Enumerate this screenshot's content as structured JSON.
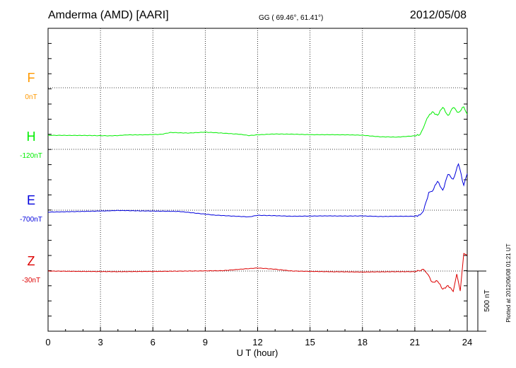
{
  "header": {
    "station": "Amderma (AMD)  [AARI]",
    "coords": "GG ( 69.46°,  61.41°)",
    "date": "2012/05/08"
  },
  "footer": {
    "plotted": "Plotted at 2012/06/08 01:21  UT"
  },
  "chart_data": {
    "type": "line",
    "xlabel": "U T (hour)",
    "xlim": [
      0,
      24
    ],
    "xticks": [
      0,
      3,
      6,
      9,
      12,
      15,
      18,
      21,
      24
    ],
    "xtick_labels": [
      "0",
      "3",
      "6",
      "9",
      "12",
      "15",
      "18",
      "21",
      "24"
    ],
    "scale_bar": {
      "label": "500 nT",
      "value_nT": 500
    },
    "series": [
      {
        "name": "F",
        "baseline_label": "0nT",
        "color": "#ff9900",
        "values": []
      },
      {
        "name": "H",
        "baseline_label": "-120nT",
        "color": "#00ee00",
        "values": [
          [
            0,
            92
          ],
          [
            2,
            91
          ],
          [
            3.5,
            88
          ],
          [
            4,
            90
          ],
          [
            4.5,
            95
          ],
          [
            5.5,
            96
          ],
          [
            6.5,
            100
          ],
          [
            7,
            115
          ],
          [
            8,
            110
          ],
          [
            9,
            118
          ],
          [
            10,
            110
          ],
          [
            11,
            100
          ],
          [
            11.5,
            90
          ],
          [
            12,
            96
          ],
          [
            13,
            103
          ],
          [
            14,
            101
          ],
          [
            15,
            97
          ],
          [
            16,
            97
          ],
          [
            17,
            96
          ],
          [
            18,
            93
          ],
          [
            18.5,
            86
          ],
          [
            19,
            80
          ],
          [
            20,
            77
          ],
          [
            21,
            88
          ],
          [
            21.3,
            98
          ],
          [
            21.5,
            150
          ],
          [
            21.7,
            235
          ],
          [
            22,
            285
          ],
          [
            22.3,
            255
          ],
          [
            22.6,
            325
          ],
          [
            22.9,
            250
          ],
          [
            23.2,
            325
          ],
          [
            23.5,
            275
          ],
          [
            23.8,
            330
          ],
          [
            24,
            265
          ]
        ]
      },
      {
        "name": "E",
        "baseline_label": "-700nT",
        "color": "#0000dd",
        "values": [
          [
            0,
            -16
          ],
          [
            2,
            -10
          ],
          [
            3.5,
            -5
          ],
          [
            4,
            -2
          ],
          [
            5,
            -5
          ],
          [
            6.5,
            -8
          ],
          [
            7.5,
            -10
          ],
          [
            8.5,
            -25
          ],
          [
            9.5,
            -40
          ],
          [
            10.5,
            -48
          ],
          [
            11.5,
            -55
          ],
          [
            12,
            -42
          ],
          [
            13,
            -45
          ],
          [
            14,
            -50
          ],
          [
            15,
            -48
          ],
          [
            16,
            -47
          ],
          [
            17,
            -48
          ],
          [
            18,
            -47
          ],
          [
            19,
            -52
          ],
          [
            20,
            -50
          ],
          [
            21,
            -50
          ],
          [
            21.3,
            -40
          ],
          [
            21.5,
            0
          ],
          [
            21.8,
            140
          ],
          [
            22,
            155
          ],
          [
            22.3,
            240
          ],
          [
            22.6,
            160
          ],
          [
            22.9,
            300
          ],
          [
            23.2,
            250
          ],
          [
            23.5,
            385
          ],
          [
            23.8,
            200
          ],
          [
            24,
            300
          ]
        ]
      },
      {
        "name": "Z",
        "baseline_label": "-30nT",
        "color": "#dd0000",
        "values": [
          [
            0,
            0
          ],
          [
            2,
            -3
          ],
          [
            4,
            -5
          ],
          [
            6,
            -3
          ],
          [
            8,
            0
          ],
          [
            10,
            3
          ],
          [
            11,
            15
          ],
          [
            12,
            25
          ],
          [
            13,
            15
          ],
          [
            14,
            0
          ],
          [
            16,
            -5
          ],
          [
            18,
            -8
          ],
          [
            20,
            -5
          ],
          [
            21,
            -5
          ],
          [
            21.5,
            12
          ],
          [
            21.7,
            -15
          ],
          [
            22,
            -95
          ],
          [
            22.3,
            -80
          ],
          [
            22.6,
            -150
          ],
          [
            22.9,
            -120
          ],
          [
            23.2,
            -165
          ],
          [
            23.4,
            -30
          ],
          [
            23.6,
            -165
          ],
          [
            23.8,
            150
          ],
          [
            24,
            130
          ]
        ]
      }
    ]
  }
}
